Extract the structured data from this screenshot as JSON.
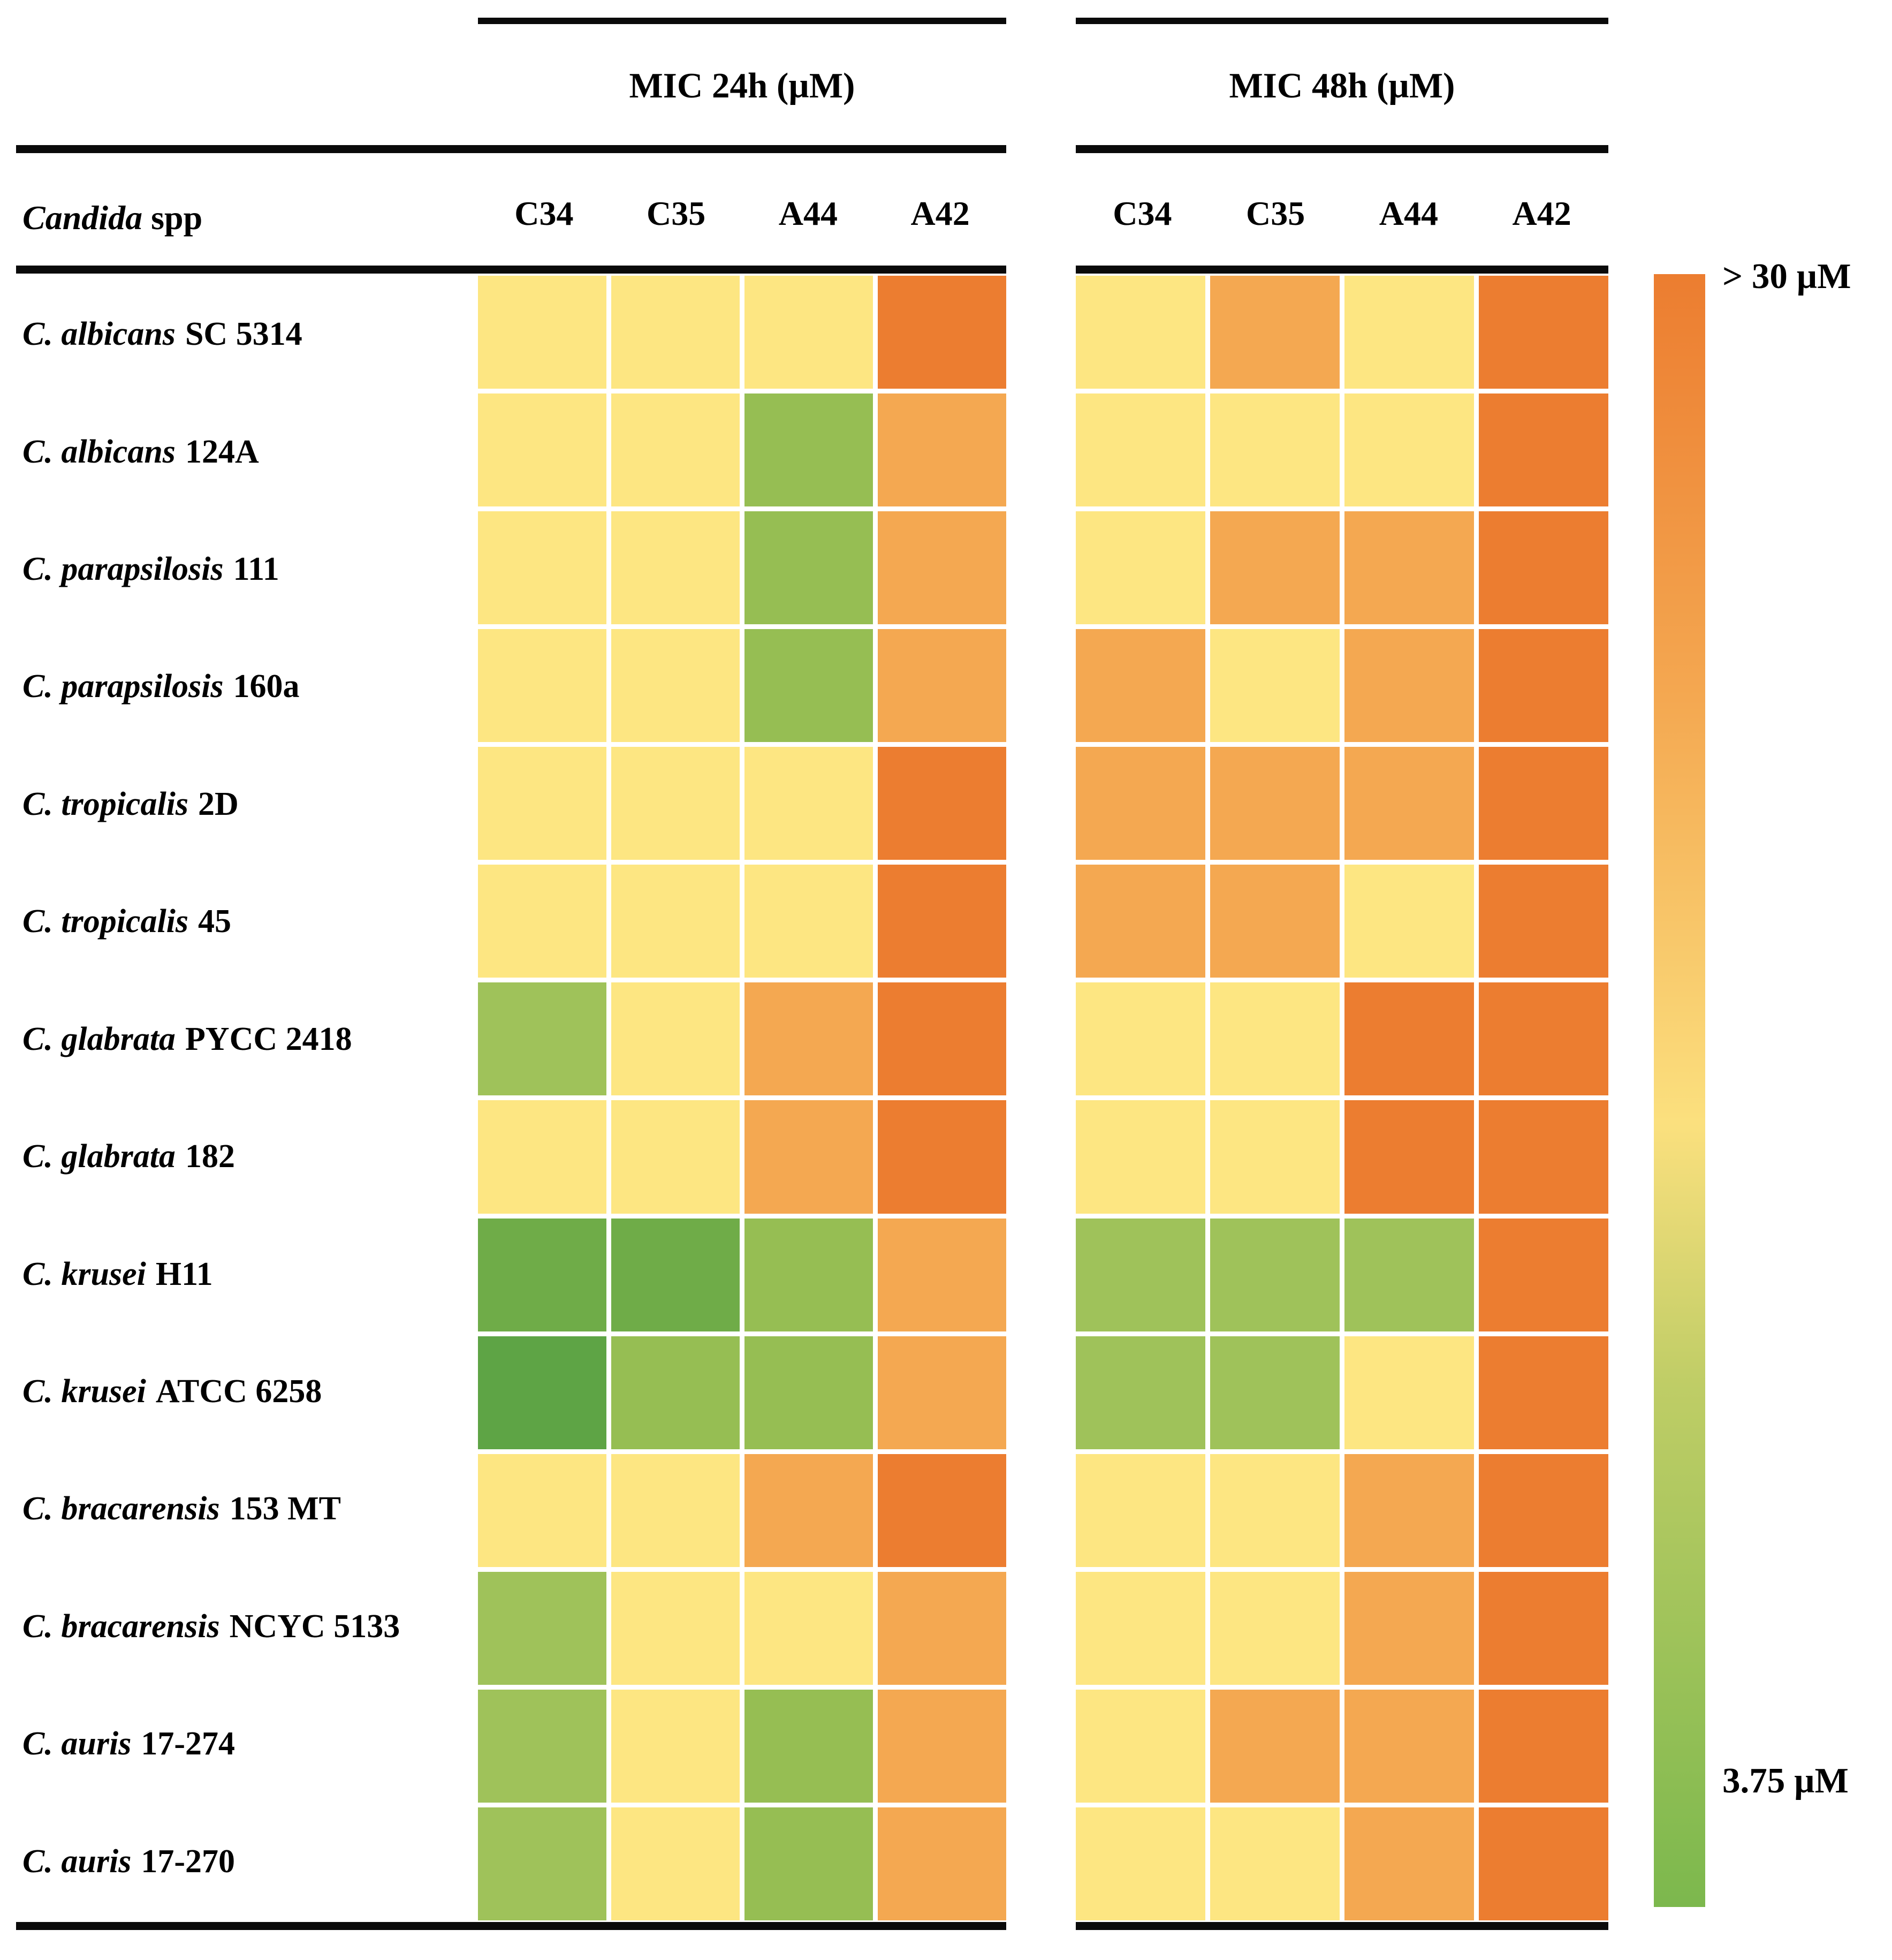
{
  "figure": {
    "left_title": "MIC 24h (µM)",
    "right_title": "MIC 48h (µM)",
    "row_header_genus": "Candida",
    "row_header_suffix": "spp",
    "columns": [
      "C34",
      "C35",
      "A44",
      "A42"
    ],
    "legend_top": "> 30 µM",
    "legend_bottom": "3.75 µM"
  },
  "palette": {
    "g1": "#5EA445",
    "g2": "#6FAC48",
    "g3": "#96BE53",
    "g4": "#9FC25A",
    "y": "#FDE682",
    "o": "#F4A851",
    "od": "#EC7D30",
    "legend_gradient": [
      "#EC7D30",
      "#F4A851",
      "#FBE07E",
      "#BFCD66",
      "#7CB84D"
    ]
  },
  "chart_data": {
    "type": "heatmap",
    "unit": "µM",
    "panels": [
      "MIC 24h (µM)",
      "MIC 48h (µM)"
    ],
    "columns": [
      "C34",
      "C35",
      "A44",
      "A42"
    ],
    "scale": {
      "max_label": "> 30 µM",
      "min_label": "3.75 µM",
      "token_approx_uM": {
        "g1": 3.75,
        "g2": 3.75,
        "g3": 7.5,
        "g4": 7.5,
        "y": 15,
        "o": 30,
        "od": ">30"
      }
    },
    "rows": [
      {
        "species": "C. albicans",
        "strain": "SC 5314",
        "mic24": [
          "y",
          "y",
          "y",
          "od"
        ],
        "mic48": [
          "y",
          "o",
          "y",
          "od"
        ]
      },
      {
        "species": "C. albicans",
        "strain": "124A",
        "mic24": [
          "y",
          "y",
          "g3",
          "o"
        ],
        "mic48": [
          "y",
          "y",
          "y",
          "od"
        ]
      },
      {
        "species": "C. parapsilosis",
        "strain": "111",
        "mic24": [
          "y",
          "y",
          "g3",
          "o"
        ],
        "mic48": [
          "y",
          "o",
          "o",
          "od"
        ]
      },
      {
        "species": "C. parapsilosis",
        "strain": "160a",
        "mic24": [
          "y",
          "y",
          "g3",
          "o"
        ],
        "mic48": [
          "o",
          "y",
          "o",
          "od"
        ]
      },
      {
        "species": "C. tropicalis",
        "strain": "2D",
        "mic24": [
          "y",
          "y",
          "y",
          "od"
        ],
        "mic48": [
          "o",
          "o",
          "o",
          "od"
        ]
      },
      {
        "species": "C. tropicalis",
        "strain": "45",
        "mic24": [
          "y",
          "y",
          "y",
          "od"
        ],
        "mic48": [
          "o",
          "o",
          "y",
          "od"
        ]
      },
      {
        "species": "C. glabrata",
        "strain": "PYCC 2418",
        "mic24": [
          "g4",
          "y",
          "o",
          "od"
        ],
        "mic48": [
          "y",
          "y",
          "od",
          "od"
        ]
      },
      {
        "species": "C. glabrata",
        "strain": "182",
        "mic24": [
          "y",
          "y",
          "o",
          "od"
        ],
        "mic48": [
          "y",
          "y",
          "od",
          "od"
        ]
      },
      {
        "species": "C. krusei",
        "strain": "H11",
        "mic24": [
          "g2",
          "g2",
          "g3",
          "o"
        ],
        "mic48": [
          "g4",
          "g4",
          "g4",
          "od"
        ]
      },
      {
        "species": "C. krusei",
        "strain": "ATCC 6258",
        "mic24": [
          "g1",
          "g3",
          "g3",
          "o"
        ],
        "mic48": [
          "g4",
          "g4",
          "y",
          "od"
        ]
      },
      {
        "species": "C. bracarensis",
        "strain": "153 MT",
        "mic24": [
          "y",
          "y",
          "o",
          "od"
        ],
        "mic48": [
          "y",
          "y",
          "o",
          "od"
        ]
      },
      {
        "species": "C. bracarensis",
        "strain": "NCYC 5133",
        "mic24": [
          "g4",
          "y",
          "y",
          "o"
        ],
        "mic48": [
          "y",
          "y",
          "o",
          "od"
        ]
      },
      {
        "species": "C. auris",
        "strain": "17-274",
        "mic24": [
          "g4",
          "y",
          "g3",
          "o"
        ],
        "mic48": [
          "y",
          "o",
          "o",
          "od"
        ]
      },
      {
        "species": "C. auris",
        "strain": "17-270",
        "mic24": [
          "g4",
          "y",
          "g3",
          "o"
        ],
        "mic48": [
          "y",
          "y",
          "o",
          "od"
        ]
      }
    ]
  }
}
